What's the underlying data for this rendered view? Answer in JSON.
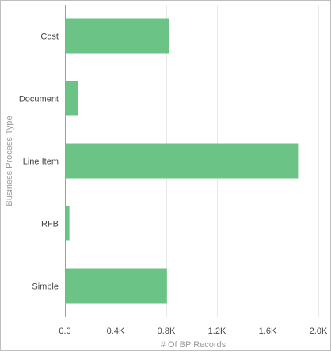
{
  "chart_data": {
    "type": "bar",
    "orientation": "horizontal",
    "categories": [
      "Cost",
      "Document",
      "Line Item",
      "RFB",
      "Simple"
    ],
    "values": [
      820,
      100,
      1840,
      35,
      805
    ],
    "xlabel": "# Of BP Records",
    "ylabel": "Business Process Type",
    "xlim": [
      0,
      2000
    ],
    "xticks": [
      0,
      400,
      800,
      1200,
      1600,
      2000
    ],
    "xtick_labels": [
      "0.0",
      "0.4K",
      "0.8K",
      "1.2K",
      "1.6K",
      "2.0K"
    ],
    "grid": "vertical",
    "bar_color": "#6bc486"
  }
}
